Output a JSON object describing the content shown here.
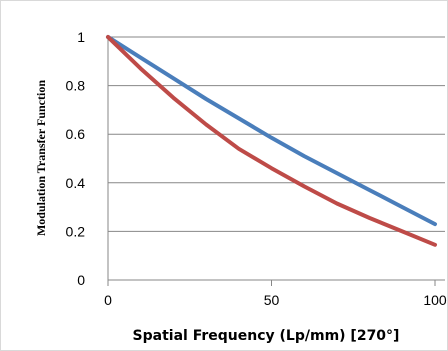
{
  "chart_data": {
    "type": "line",
    "title": "",
    "xlabel": "Spatial Frequency (Lp/mm) [270°]",
    "ylabel": "Modulation Transfer Function",
    "xlim": [
      0,
      100
    ],
    "ylim": [
      0,
      1
    ],
    "xticks": [
      0,
      50,
      100
    ],
    "xtick_labels": [
      "0",
      "50",
      "100"
    ],
    "yticks": [
      0,
      0.2,
      0.4,
      0.6,
      0.8,
      1
    ],
    "ytick_labels": [
      "0",
      "0.2",
      "0.4",
      "0.6",
      "0.8",
      "1"
    ],
    "grid": true,
    "legend": "none",
    "series": [
      {
        "color": "#4a7ebb",
        "x": [
          0,
          10,
          20,
          30,
          40,
          50,
          60,
          70,
          80,
          90,
          100
        ],
        "y": [
          1.0,
          0.915,
          0.83,
          0.745,
          0.665,
          0.585,
          0.51,
          0.44,
          0.37,
          0.3,
          0.23
        ]
      },
      {
        "color": "#be4b48",
        "x": [
          0,
          10,
          20,
          30,
          40,
          50,
          60,
          70,
          80,
          90,
          100
        ],
        "y": [
          1.0,
          0.87,
          0.75,
          0.64,
          0.54,
          0.46,
          0.385,
          0.315,
          0.255,
          0.2,
          0.145
        ]
      }
    ]
  }
}
